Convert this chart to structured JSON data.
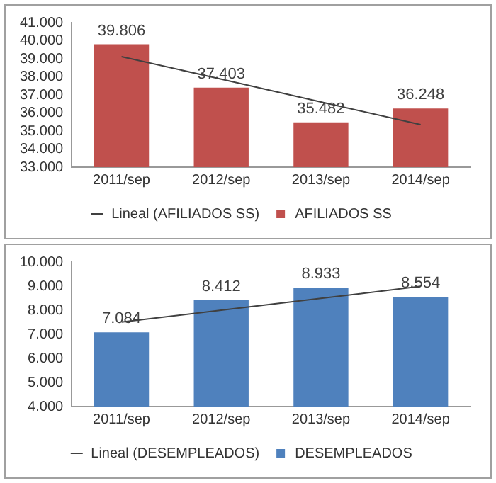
{
  "chart_data": [
    {
      "type": "bar",
      "categories": [
        "2011/sep",
        "2012/sep",
        "2013/sep",
        "2014/sep"
      ],
      "series": [
        {
          "name": "AFILIADOS SS",
          "color": "#c0504d",
          "values": [
            39806,
            37403,
            35482,
            36248
          ],
          "value_labels": [
            "39.806",
            "37.403",
            "35.482",
            "36.248"
          ]
        },
        {
          "name": "Lineal (AFILIADOS SS)",
          "type": "line",
          "color": "#404040",
          "marker": "none",
          "values": [
            39120,
            37870,
            36610,
            35350
          ]
        }
      ],
      "ylim": [
        33000,
        41000
      ],
      "yticks": [
        {
          "value": 33000,
          "label": "33.000"
        },
        {
          "value": 34000,
          "label": "34.000"
        },
        {
          "value": 35000,
          "label": "35.000"
        },
        {
          "value": 36000,
          "label": "36.000"
        },
        {
          "value": 37000,
          "label": "37.000"
        },
        {
          "value": 38000,
          "label": "38.000"
        },
        {
          "value": 39000,
          "label": "39.000"
        },
        {
          "value": 40000,
          "label": "40.000"
        },
        {
          "value": 41000,
          "label": "41.000"
        }
      ],
      "grid": false,
      "legend": "bottom"
    },
    {
      "type": "bar",
      "categories": [
        "2011/sep",
        "2012/sep",
        "2013/sep",
        "2014/sep"
      ],
      "series": [
        {
          "name": "DESEMPLEADOS",
          "color": "#4f81bd",
          "values": [
            7084,
            8412,
            8933,
            8554
          ],
          "value_labels": [
            "7.084",
            "8.412",
            "8.933",
            "8.554"
          ]
        },
        {
          "name": "Lineal (DESEMPLEADOS)",
          "type": "line",
          "color": "#404040",
          "marker": "none",
          "values": [
            7510,
            8000,
            8490,
            8990
          ]
        }
      ],
      "ylim": [
        4000,
        10000
      ],
      "yticks": [
        {
          "value": 4000,
          "label": "4.000"
        },
        {
          "value": 5000,
          "label": "5.000"
        },
        {
          "value": 6000,
          "label": "6.000"
        },
        {
          "value": 7000,
          "label": "7.000"
        },
        {
          "value": 8000,
          "label": "8.000"
        },
        {
          "value": 9000,
          "label": "9.000"
        },
        {
          "value": 10000,
          "label": "10.000"
        }
      ],
      "grid": false,
      "legend": "bottom"
    }
  ]
}
